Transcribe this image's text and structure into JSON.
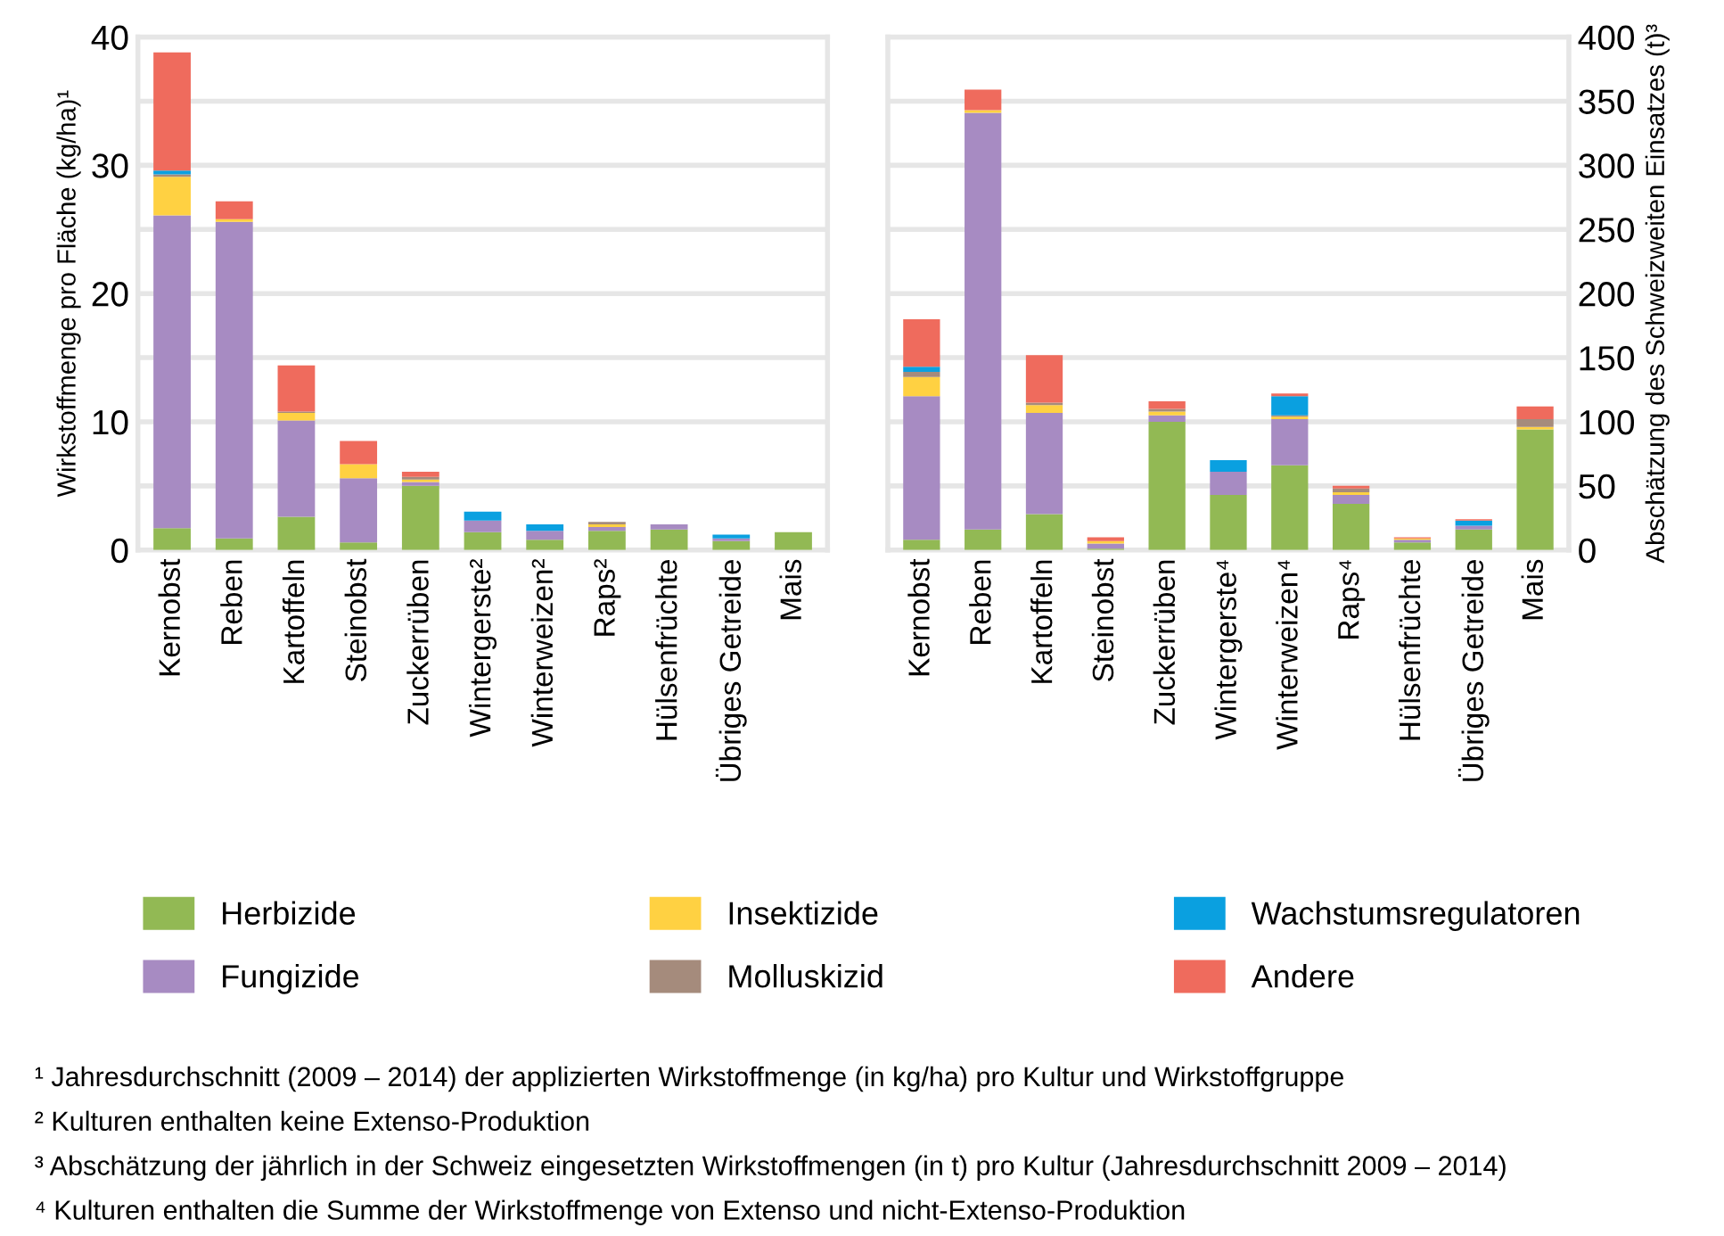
{
  "chart_data": [
    {
      "type": "bar",
      "stacked": true,
      "ylabel": "Wirkstoffmenge pro Fläche (kg/ha)¹",
      "categories": [
        "Kernobst",
        "Reben",
        "Kartoffeln",
        "Steinobst",
        "Zuckerrüben",
        "Wintergerste²",
        "Winterweizen²",
        "Raps²",
        "Hülsenfrüchte",
        "Übriges Getreide",
        "Mais"
      ],
      "series": [
        {
          "name": "Herbizide",
          "color": "#92b954",
          "values": [
            1.7,
            0.9,
            2.6,
            0.6,
            5.0,
            1.4,
            0.8,
            1.5,
            1.6,
            0.7,
            1.4
          ]
        },
        {
          "name": "Fungizide",
          "color": "#a78bc2",
          "values": [
            24.4,
            24.7,
            7.5,
            5.0,
            0.3,
            0.9,
            0.7,
            0.3,
            0.4,
            0.2,
            0
          ]
        },
        {
          "name": "Insektizide",
          "color": "#ffd142",
          "values": [
            3.0,
            0.2,
            0.6,
            1.1,
            0.2,
            0,
            0,
            0.2,
            0,
            0,
            0
          ]
        },
        {
          "name": "Molluskizid",
          "color": "#a58b7c",
          "values": [
            0.2,
            0,
            0.1,
            0,
            0.2,
            0,
            0,
            0.2,
            0,
            0,
            0
          ]
        },
        {
          "name": "Wachstumsregulatoren",
          "color": "#0aa0e0",
          "values": [
            0.3,
            0,
            0,
            0,
            0,
            0.7,
            0.5,
            0,
            0,
            0.3,
            0
          ]
        },
        {
          "name": "Andere",
          "color": "#ef6b5d",
          "values": [
            9.2,
            1.4,
            3.6,
            1.8,
            0.4,
            0,
            0,
            0,
            0,
            0,
            0
          ]
        }
      ],
      "ylim": [
        0,
        40
      ],
      "yticks": [
        0,
        {
          "value": 5,
          "label": null
        },
        10,
        {
          "value": 15,
          "label": null
        },
        20,
        {
          "value": 25,
          "label": null
        },
        30,
        {
          "value": 35,
          "label": null
        },
        40
      ],
      "grid": "y",
      "legend": "bottom",
      "annotations": [
        "¹ Jahresdurchschnitt (2009 – 2014) der applizierten Wirkstoffmenge (in kg/ha) pro Kultur und Wirkstoffgruppe",
        "² Kulturen enthalten keine Extenso-Produktion",
        "³ Abschätzung der jährlich in der Schweiz eingesetzten Wirkstoffmengen (in t) pro Kultur (Jahresdurchschnitt 2009 – 2014)",
        "⁴ Kulturen enthalten die Summe der Wirkstoffmenge von Extenso und nicht-Extenso-Produktion"
      ]
    },
    {
      "type": "bar",
      "stacked": true,
      "ylabel": "Abschätzung des Schweizweiten Einsatzes (t)³",
      "categories": [
        "Kernobst",
        "Reben",
        "Kartoffeln",
        "Steinobst",
        "Zuckerrüben",
        "Wintergerste⁴",
        "Winterweizen⁴",
        "Raps⁴",
        "Hülsenfrüchte",
        "Übriges Getreide",
        "Mais"
      ],
      "series": [
        {
          "name": "Herbizide",
          "color": "#92b954",
          "values": [
            8,
            16,
            28,
            1,
            100,
            43,
            66,
            36,
            6,
            16,
            94
          ]
        },
        {
          "name": "Fungizide",
          "color": "#a78bc2",
          "values": [
            112,
            325,
            79,
            4,
            5,
            18,
            36,
            7,
            2,
            3,
            0
          ]
        },
        {
          "name": "Insektizide",
          "color": "#ffd142",
          "values": [
            15,
            2,
            6,
            2,
            3,
            0,
            2,
            2,
            1,
            0,
            2
          ]
        },
        {
          "name": "Molluskizid",
          "color": "#a58b7c",
          "values": [
            4,
            0,
            2,
            0,
            2,
            0,
            1,
            3,
            0,
            0,
            6
          ]
        },
        {
          "name": "Wachstumsregulatoren",
          "color": "#0aa0e0",
          "values": [
            4,
            0,
            0,
            0,
            0,
            9,
            15,
            0,
            0,
            4,
            0
          ]
        },
        {
          "name": "Andere",
          "color": "#ef6b5d",
          "values": [
            37,
            16,
            37,
            3,
            6,
            0,
            2,
            2,
            1,
            1,
            10
          ]
        }
      ],
      "ylim": [
        0,
        400
      ],
      "yticks": [
        0,
        50,
        100,
        150,
        200,
        250,
        300,
        350,
        400
      ],
      "grid": "y"
    }
  ]
}
